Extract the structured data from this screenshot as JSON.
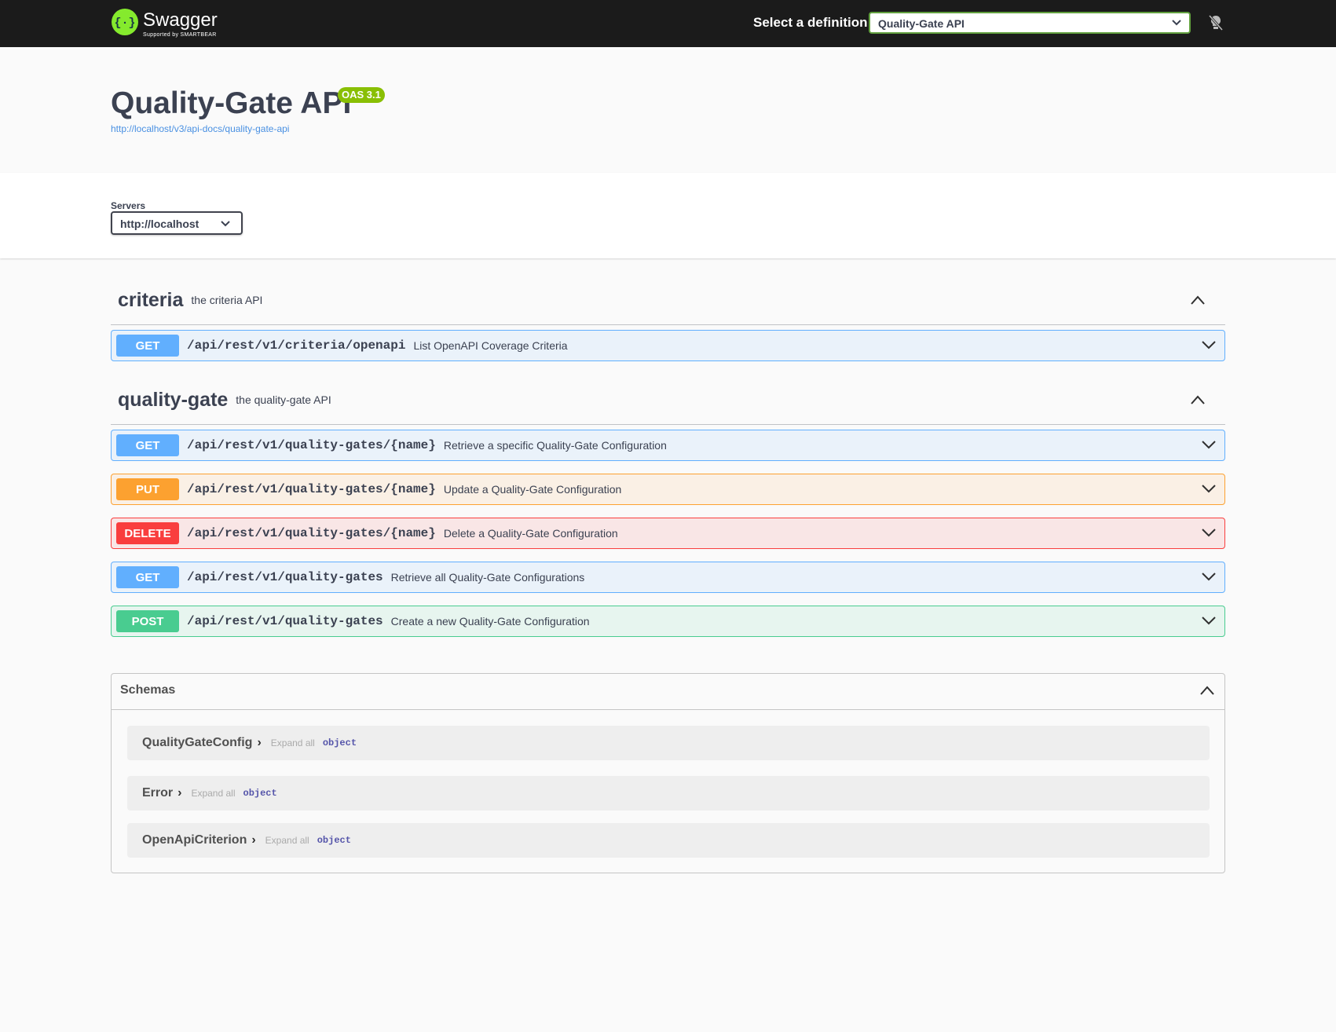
{
  "header": {
    "logo_text": "Swagger",
    "logo_sub": "Supported by SMARTBEAR",
    "definition_label": "Select a definition",
    "definition_value": "Quality-Gate API"
  },
  "info": {
    "title": "Quality-Gate API",
    "version": "OAS 3.1",
    "url": "http://localhost/v3/api-docs/quality-gate-api"
  },
  "servers": {
    "label": "Servers",
    "value": "http://localhost"
  },
  "tags": [
    {
      "name": "criteria",
      "description": "the criteria API",
      "operations": [
        {
          "method": "GET",
          "path": "/api/rest/v1/criteria/openapi",
          "summary": "List OpenAPI Coverage Criteria"
        }
      ]
    },
    {
      "name": "quality-gate",
      "description": "the quality-gate API",
      "operations": [
        {
          "method": "GET",
          "path": "/api/rest/v1/quality-gates/{name}",
          "summary": "Retrieve a specific Quality-Gate Configuration"
        },
        {
          "method": "PUT",
          "path": "/api/rest/v1/quality-gates/{name}",
          "summary": "Update a Quality-Gate Configuration"
        },
        {
          "method": "DELETE",
          "path": "/api/rest/v1/quality-gates/{name}",
          "summary": "Delete a Quality-Gate Configuration"
        },
        {
          "method": "GET",
          "path": "/api/rest/v1/quality-gates",
          "summary": "Retrieve all Quality-Gate Configurations"
        },
        {
          "method": "POST",
          "path": "/api/rest/v1/quality-gates",
          "summary": "Create a new Quality-Gate Configuration"
        }
      ]
    }
  ],
  "schemas": {
    "title": "Schemas",
    "items": [
      {
        "name": "QualityGateConfig",
        "expand": "Expand all",
        "type": "object"
      },
      {
        "name": "Error",
        "expand": "Expand all",
        "type": "object"
      },
      {
        "name": "OpenApiCriterion",
        "expand": "Expand all",
        "type": "object"
      }
    ]
  }
}
